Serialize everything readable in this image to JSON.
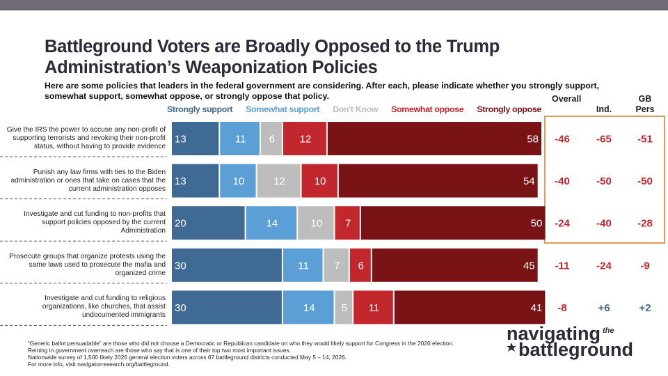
{
  "chart_data": {
    "type": "bar",
    "orientation": "horizontal",
    "stacked": true,
    "title": "Battleground Voters are Broadly Opposed to the Trump Administration’s Weaponization Policies",
    "subtitle": "Here are some policies that leaders in the federal government are considering. After each, please indicate whether you strongly support, somewhat support, somewhat oppose, or strongly oppose that policy.",
    "categories": [
      "Give the IRS the power to accuse any non-profit of supporting terrorists and revoking their non-profit status, without having to provide evidence",
      "Punish any law firms with ties to the Biden administration or ones that take on cases that the current administration opposes",
      "Investigate and cut funding to non-profits that support policies opposed by the current Administration",
      "Prosecute groups that organize protests using the same laws used to prosecute the mafia and organized crime",
      "Investigate and cut funding to religious organizations, like churches, that assist undocumented immigrants"
    ],
    "series": [
      {
        "name": "Strongly support",
        "color": "#3e6a93",
        "values": [
          13,
          13,
          20,
          30,
          30
        ]
      },
      {
        "name": "Somewhat support",
        "color": "#5b9fd6",
        "values": [
          11,
          10,
          14,
          11,
          14
        ]
      },
      {
        "name": "Don't Know",
        "color": "#bdbdbd",
        "values": [
          6,
          12,
          10,
          7,
          5
        ]
      },
      {
        "name": "Somewhat oppose",
        "color": "#c1272d",
        "values": [
          12,
          10,
          7,
          6,
          11
        ]
      },
      {
        "name": "Strongly oppose",
        "color": "#7a1315",
        "values": [
          58,
          54,
          50,
          45,
          41
        ]
      }
    ],
    "xlim": [
      0,
      100
    ],
    "net_columns": [
      {
        "name": "Overall",
        "values": [
          -46,
          -40,
          -24,
          -11,
          -8
        ]
      },
      {
        "name": "Ind.",
        "values": [
          -65,
          -50,
          -40,
          -24,
          6
        ],
        "value_labels": [
          "-65",
          "-50",
          "-40",
          "-24",
          "+6"
        ]
      },
      {
        "name": "GB Pers",
        "values": [
          -51,
          -50,
          -28,
          -9,
          2
        ],
        "value_labels": [
          "-51",
          "-50",
          "-28",
          "-9",
          "+2"
        ]
      }
    ],
    "net_colors": {
      "negative": "#c1272d",
      "positive": "#3e6a93"
    },
    "footnotes": [
      "“Generic ballot persuadable” are those who did not choose a Democratic or Republican candidate on who they would likely support for Congress in the 2026 election.",
      "Reining in government overreach are those who say that is one of their top two most important issues.",
      "Nationwide survey of 1,500 likely 2026 general election voters across 67 battleground districts conducted May 5 – 14, 2026.",
      "For more info, visit navigatorresearch.org/battleground."
    ],
    "logo": {
      "line1": "navigating",
      "small": "the",
      "line2": "battleground"
    }
  }
}
